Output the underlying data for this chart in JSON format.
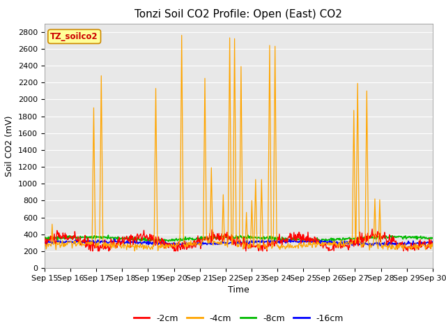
{
  "title": "Tonzi Soil CO2 Profile: Open (East) CO2",
  "ylabel": "Soil CO2 (mV)",
  "xlabel": "Time",
  "annotation": "TZ_soilco2",
  "ylim": [
    0,
    2900
  ],
  "yticks": [
    0,
    200,
    400,
    600,
    800,
    1000,
    1200,
    1400,
    1600,
    1800,
    2000,
    2200,
    2400,
    2600,
    2800
  ],
  "xstart": 15,
  "xend": 30,
  "colors": {
    "-2cm": "#ff0000",
    "-4cm": "#ffa500",
    "-8cm": "#00bb00",
    "-16cm": "#0000ff"
  },
  "legend_labels": [
    "-2cm",
    "-4cm",
    "-8cm",
    "-16cm"
  ],
  "legend_colors": [
    "#ff0000",
    "#ffa500",
    "#00bb00",
    "#0000ff"
  ],
  "bg_color": "#e8e8e8",
  "annotation_bg": "#ffff99",
  "annotation_border": "#cc8800",
  "annotation_text_color": "#cc0000",
  "title_fontsize": 11,
  "axis_fontsize": 9,
  "tick_fontsize": 8
}
